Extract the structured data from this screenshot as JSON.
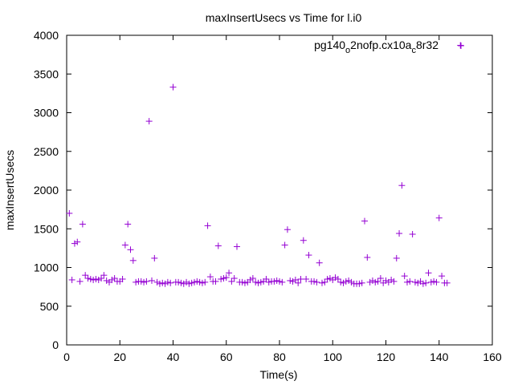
{
  "chart_data": {
    "type": "scatter",
    "title": "maxInsertUsecs vs Time for l.i0",
    "xlabel": "Time(s)",
    "ylabel": "maxInsertUsecs",
    "xlim": [
      0,
      160
    ],
    "ylim": [
      0,
      4000
    ],
    "xticks": [
      0,
      20,
      40,
      60,
      80,
      100,
      120,
      140,
      160
    ],
    "yticks": [
      0,
      500,
      1000,
      1500,
      2000,
      2500,
      3000,
      3500,
      4000
    ],
    "grid": false,
    "legend_position": "top-right",
    "marker": "plus",
    "series": [
      {
        "name_parts": [
          "pg140",
          "o",
          "2nofp.cx10a",
          "c",
          "8r32"
        ],
        "color": "#9400d3",
        "x": [
          1,
          2,
          3,
          4,
          5,
          6,
          7,
          8,
          9,
          10,
          11,
          12,
          13,
          14,
          15,
          16,
          17,
          18,
          19,
          20,
          21,
          22,
          23,
          24,
          25,
          26,
          27,
          28,
          29,
          30,
          31,
          32,
          33,
          34,
          35,
          36,
          37,
          38,
          39,
          40,
          41,
          42,
          43,
          44,
          45,
          46,
          47,
          48,
          49,
          50,
          51,
          52,
          53,
          54,
          55,
          56,
          57,
          58,
          59,
          60,
          61,
          62,
          63,
          64,
          65,
          66,
          67,
          68,
          69,
          70,
          71,
          72,
          73,
          74,
          75,
          76,
          77,
          78,
          79,
          80,
          81,
          82,
          83,
          84,
          85,
          86,
          87,
          88,
          89,
          90,
          91,
          92,
          93,
          94,
          95,
          96,
          97,
          98,
          99,
          100,
          101,
          102,
          103,
          104,
          105,
          106,
          107,
          108,
          109,
          110,
          111,
          112,
          113,
          114,
          115,
          116,
          117,
          118,
          119,
          120,
          121,
          122,
          123,
          124,
          125,
          126,
          127,
          128,
          129,
          130,
          131,
          132,
          133,
          134,
          135,
          136,
          137,
          138,
          139,
          140,
          141,
          142,
          143
        ],
        "y": [
          1700,
          840,
          1310,
          1330,
          820,
          1560,
          900,
          860,
          850,
          840,
          850,
          840,
          860,
          900,
          830,
          810,
          840,
          860,
          820,
          820,
          850,
          1290,
          1560,
          1230,
          1090,
          810,
          820,
          820,
          810,
          820,
          2890,
          830,
          1120,
          810,
          790,
          800,
          790,
          810,
          800,
          3330,
          810,
          810,
          800,
          790,
          810,
          790,
          800,
          810,
          820,
          810,
          800,
          810,
          1540,
          880,
          820,
          820,
          1280,
          850,
          860,
          870,
          930,
          820,
          860,
          1270,
          810,
          810,
          800,
          810,
          840,
          860,
          810,
          800,
          810,
          820,
          850,
          810,
          820,
          820,
          830,
          820,
          810,
          1290,
          1490,
          830,
          820,
          840,
          800,
          850,
          1350,
          850,
          1160,
          820,
          820,
          810,
          1060,
          800,
          810,
          850,
          860,
          840,
          870,
          850,
          810,
          800,
          820,
          830,
          810,
          790,
          790,
          790,
          800,
          1600,
          1130,
          810,
          830,
          810,
          820,
          860,
          800,
          830,
          810,
          840,
          820,
          1120,
          1440,
          2060,
          890,
          810,
          820,
          1430,
          810,
          800,
          820,
          790,
          800,
          930,
          810,
          820,
          810,
          1640,
          890,
          800,
          800
        ]
      }
    ],
    "extra_points": [
      {
        "x": 148,
        "y": 3870
      }
    ]
  }
}
